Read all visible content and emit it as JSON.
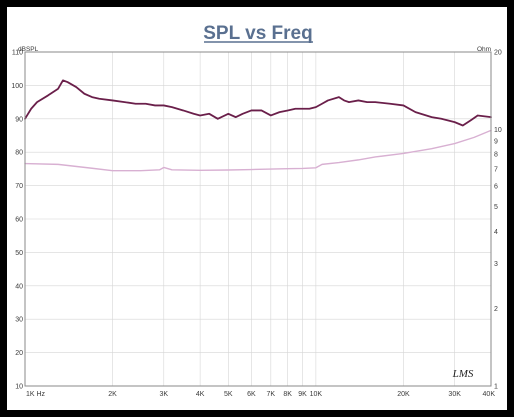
{
  "chart_data": {
    "type": "line",
    "title": "SPL vs Freq",
    "ylabel_left": "dBSPL",
    "ylabel_right": "Ohm",
    "xscale": "log",
    "xlim": [
      1000,
      40000
    ],
    "ylim": [
      10,
      110
    ],
    "y2lim": [
      1,
      20
    ],
    "y2scale": "log",
    "grid": true,
    "x_ticks": [
      {
        "label": "1K Hz",
        "value": 1000
      },
      {
        "label": "2K",
        "value": 2000
      },
      {
        "label": "3K",
        "value": 3000
      },
      {
        "label": "4K",
        "value": 4000
      },
      {
        "label": "5K",
        "value": 5000
      },
      {
        "label": "6K",
        "value": 6000
      },
      {
        "label": "7K",
        "value": 7000
      },
      {
        "label": "8K",
        "value": 8000
      },
      {
        "label": "9K",
        "value": 9000
      },
      {
        "label": "10K",
        "value": 10000
      },
      {
        "label": "20K",
        "value": 20000
      },
      {
        "label": "30K",
        "value": 30000
      },
      {
        "label": "40K",
        "value": 40000
      }
    ],
    "y_ticks": [
      "110",
      "100",
      "90",
      "80",
      "70",
      "60",
      "50",
      "40",
      "30",
      "20",
      "10"
    ],
    "y2_ticks": [
      {
        "label": "20",
        "value": 20
      },
      {
        "label": "10",
        "value": 10
      },
      {
        "label": "9",
        "value": 9
      },
      {
        "label": "8",
        "value": 8
      },
      {
        "label": "7",
        "value": 7
      },
      {
        "label": "6",
        "value": 6
      },
      {
        "label": "5",
        "value": 5
      },
      {
        "label": "4",
        "value": 4
      },
      {
        "label": "3",
        "value": 3
      },
      {
        "label": "2",
        "value": 2
      },
      {
        "label": "1",
        "value": 1
      }
    ],
    "series": [
      {
        "axis": "left",
        "color": "#6a1f4a",
        "x": [
          1000,
          1050,
          1100,
          1200,
          1300,
          1350,
          1400,
          1500,
          1600,
          1700,
          1800,
          2000,
          2200,
          2400,
          2600,
          2800,
          3000,
          3200,
          3500,
          3800,
          4000,
          4300,
          4600,
          5000,
          5300,
          5600,
          6000,
          6500,
          7000,
          7500,
          8000,
          8500,
          9000,
          9500,
          10000,
          10500,
          11000,
          12000,
          12500,
          13000,
          14000,
          15000,
          16000,
          18000,
          20000,
          22000,
          25000,
          27000,
          30000,
          32000,
          34000,
          36000,
          40000
        ],
        "y": [
          90,
          93,
          95,
          97,
          99,
          101.5,
          101,
          99.5,
          97.5,
          96.5,
          96,
          95.5,
          95,
          94.5,
          94.5,
          94,
          94,
          93.5,
          92.5,
          91.5,
          91,
          91.5,
          90,
          91.5,
          90.5,
          91.5,
          92.5,
          92.5,
          91,
          92,
          92.5,
          93,
          93,
          93,
          93.5,
          94.5,
          95.5,
          96.5,
          95.5,
          95,
          95.5,
          95,
          95,
          94.5,
          94,
          92,
          90.5,
          90,
          89,
          88,
          89.5,
          91,
          90.5
        ]
      },
      {
        "axis": "right",
        "color": "#d8b0d2",
        "x": [
          1000,
          1300,
          1700,
          2000,
          2500,
          2900,
          3000,
          3200,
          4000,
          5000,
          6000,
          7000,
          8000,
          9000,
          10000,
          10500,
          12000,
          14000,
          16000,
          20000,
          25000,
          30000,
          35000,
          40000
        ],
        "y": [
          7.35,
          7.3,
          7.05,
          6.9,
          6.9,
          6.95,
          7.1,
          6.95,
          6.92,
          6.94,
          6.97,
          7.0,
          7.02,
          7.04,
          7.08,
          7.3,
          7.42,
          7.6,
          7.8,
          8.05,
          8.4,
          8.8,
          9.3,
          9.9
        ]
      }
    ]
  },
  "logo_text": "LMS"
}
